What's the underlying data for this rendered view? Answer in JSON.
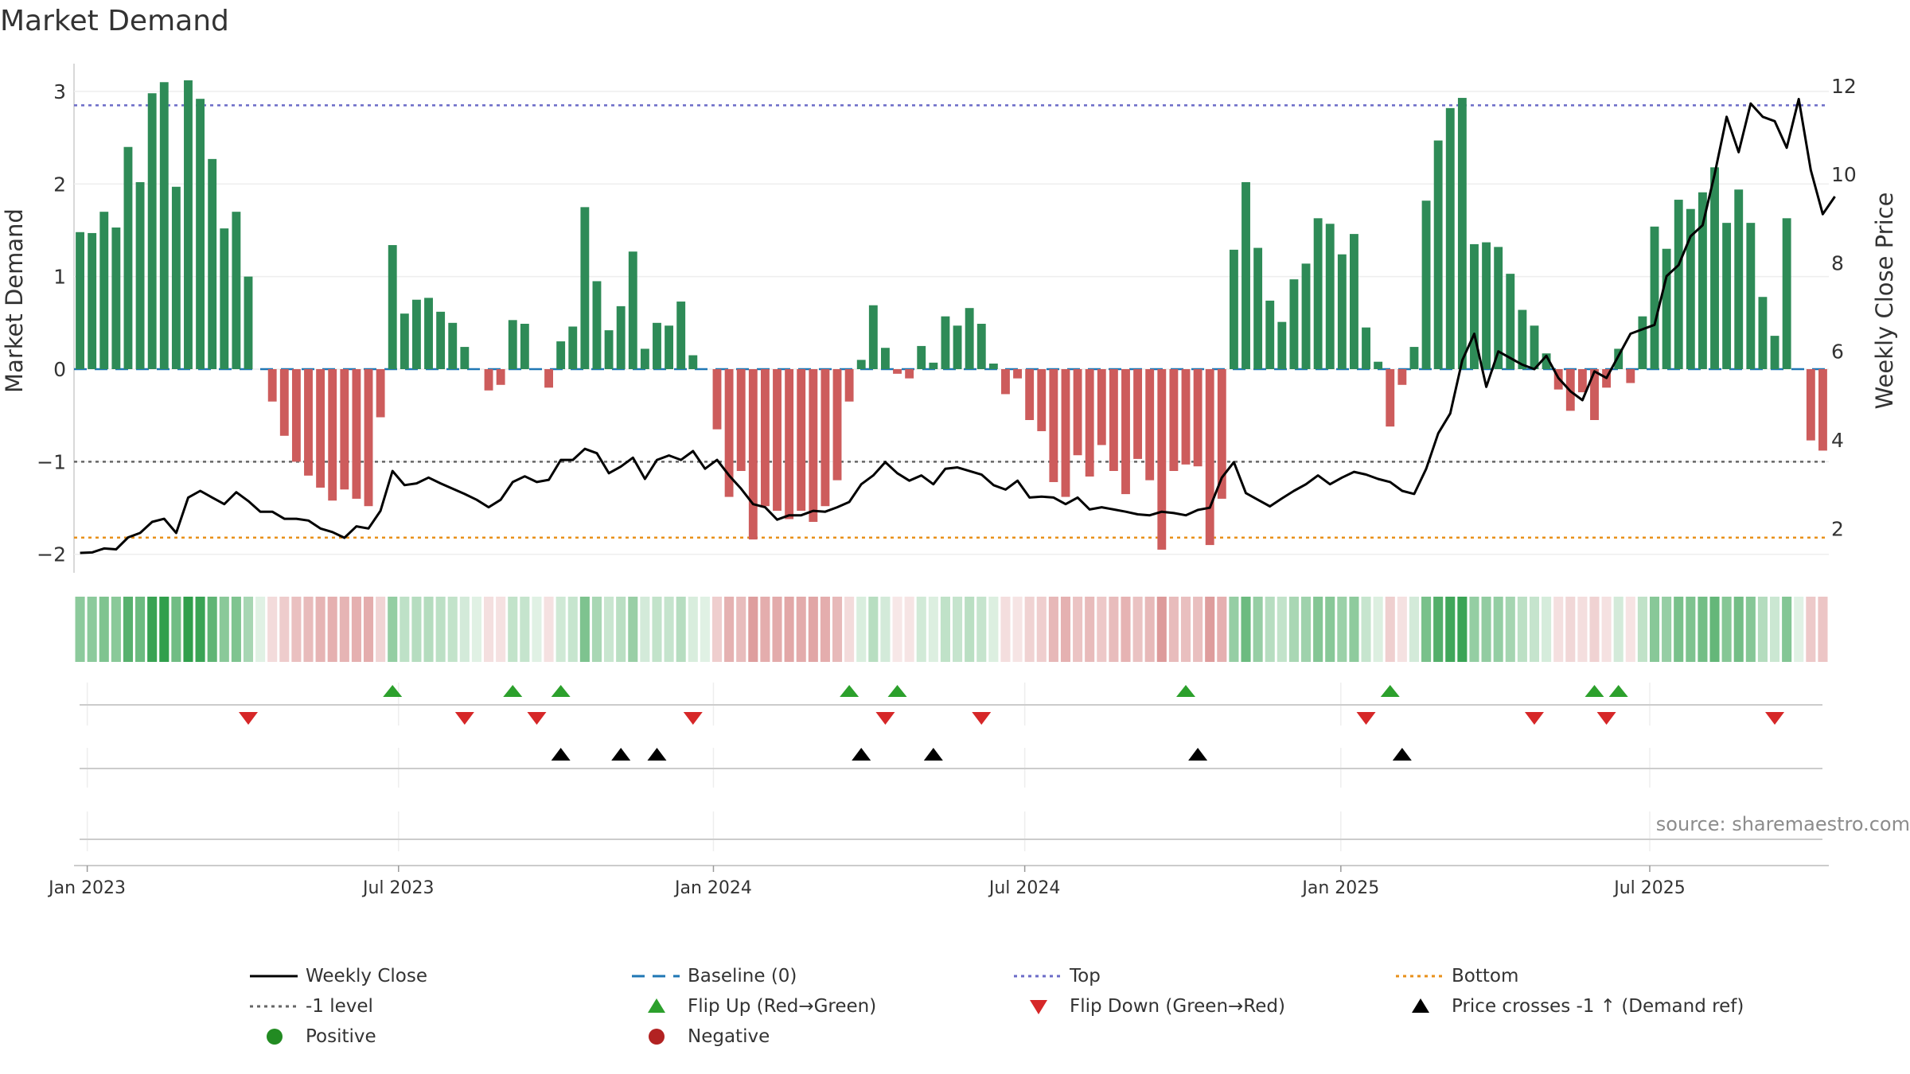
{
  "chart_data": {
    "type": "bar",
    "title": "Market Demand",
    "ylabel_left": "Market Demand",
    "ylabel_right": "Weekly Close Price",
    "ylim_left": [
      -2.2,
      3.3
    ],
    "ylim_right": [
      1.0,
      12.5
    ],
    "yticks_left": [
      -2,
      -1,
      0,
      1,
      2,
      3
    ],
    "yticks_right": [
      2,
      4,
      6,
      8,
      10,
      12
    ],
    "x_ticks": [
      "Jan 2023",
      "Jul 2023",
      "Jan 2024",
      "Jul 2024",
      "Jan 2025",
      "Jul 2025"
    ],
    "x_tick_weeks": [
      1.1,
      27.0,
      53.2,
      79.1,
      105.4,
      131.1
    ],
    "levels": {
      "top": 2.85,
      "bottom": -1.82,
      "minus_one": -1.0,
      "baseline": 0
    },
    "demand": [
      1.48,
      1.47,
      1.7,
      1.53,
      2.4,
      2.02,
      2.98,
      3.1,
      1.97,
      3.12,
      2.92,
      2.27,
      1.52,
      1.7,
      1.0,
      0.0,
      -0.35,
      -0.72,
      -1.0,
      -1.15,
      -1.28,
      -1.42,
      -1.3,
      -1.4,
      -1.48,
      -0.52,
      1.34,
      0.6,
      0.75,
      0.77,
      0.62,
      0.5,
      0.24,
      0.0,
      -0.23,
      -0.17,
      0.53,
      0.49,
      0.0,
      -0.2,
      0.3,
      0.46,
      1.75,
      0.95,
      0.42,
      0.68,
      1.27,
      0.22,
      0.5,
      0.47,
      0.73,
      0.15,
      0.0,
      -0.65,
      -1.38,
      -1.1,
      -1.84,
      -1.48,
      -1.53,
      -1.62,
      -1.53,
      -1.65,
      -1.48,
      -1.2,
      -0.35,
      0.1,
      0.69,
      0.23,
      -0.05,
      -0.1,
      0.25,
      0.07,
      0.57,
      0.47,
      0.66,
      0.49,
      0.06,
      -0.27,
      -0.1,
      -0.55,
      -0.67,
      -1.22,
      -1.38,
      -0.93,
      -1.16,
      -0.82,
      -1.1,
      -1.35,
      -0.97,
      -1.2,
      -1.95,
      -1.1,
      -1.03,
      -1.05,
      -1.9,
      -1.4,
      1.29,
      2.02,
      1.31,
      0.74,
      0.51,
      0.97,
      1.14,
      1.63,
      1.57,
      1.24,
      1.46,
      0.45,
      0.08,
      -0.62,
      -0.17,
      0.24,
      1.82,
      2.47,
      2.82,
      2.93,
      1.35,
      1.37,
      1.32,
      1.03,
      0.64,
      0.47,
      0.17,
      -0.22,
      -0.45,
      -0.25,
      -0.55,
      -0.2,
      0.22,
      -0.15,
      0.57,
      1.54,
      1.3,
      1.83,
      1.73,
      1.91,
      2.18,
      1.58,
      1.94,
      1.58,
      0.78,
      0.36,
      1.63,
      0.0,
      -0.77,
      -0.88
    ],
    "weekly_close": [
      1.45,
      1.46,
      1.55,
      1.53,
      1.8,
      1.9,
      2.15,
      2.22,
      1.9,
      2.7,
      2.85,
      2.7,
      2.55,
      2.82,
      2.62,
      2.38,
      2.38,
      2.22,
      2.22,
      2.18,
      2.0,
      1.92,
      1.79,
      2.05,
      2.0,
      2.4,
      3.3,
      2.98,
      3.02,
      3.15,
      3.02,
      2.9,
      2.78,
      2.65,
      2.48,
      2.65,
      3.05,
      3.18,
      3.05,
      3.1,
      3.55,
      3.55,
      3.8,
      3.7,
      3.25,
      3.4,
      3.6,
      3.12,
      3.55,
      3.65,
      3.55,
      3.75,
      3.35,
      3.55,
      3.2,
      2.9,
      2.55,
      2.48,
      2.2,
      2.3,
      2.3,
      2.4,
      2.38,
      2.48,
      2.6,
      3.0,
      3.2,
      3.5,
      3.25,
      3.08,
      3.2,
      3.0,
      3.35,
      3.38,
      3.3,
      3.22,
      2.98,
      2.88,
      3.08,
      2.7,
      2.72,
      2.7,
      2.55,
      2.7,
      2.43,
      2.48,
      2.43,
      2.38,
      2.32,
      2.3,
      2.38,
      2.35,
      2.3,
      2.42,
      2.47,
      3.15,
      3.5,
      2.8,
      2.65,
      2.5,
      2.68,
      2.85,
      3.0,
      3.2,
      3.0,
      3.15,
      3.28,
      3.22,
      3.12,
      3.05,
      2.85,
      2.78,
      3.35,
      4.15,
      4.6,
      5.8,
      6.4,
      5.2,
      6.0,
      5.85,
      5.7,
      5.6,
      5.9,
      5.4,
      5.1,
      4.9,
      5.55,
      5.4,
      5.9,
      6.4,
      6.5,
      6.6,
      7.7,
      7.95,
      8.6,
      8.85,
      10.0,
      11.3,
      10.5,
      11.6,
      11.3,
      11.2,
      10.6,
      11.7,
      10.1,
      9.1,
      9.5
    ],
    "flips_up_weeks": [
      26,
      36,
      40,
      64,
      68,
      92,
      109,
      126,
      128
    ],
    "flips_down_weeks": [
      14,
      32,
      38,
      51,
      67,
      75,
      107,
      121,
      127,
      141
    ],
    "price_cross_weeks": [
      40,
      45,
      48,
      65,
      71,
      93,
      110
    ],
    "legend": [
      {
        "key": "weekly_close",
        "label": "Weekly Close",
        "color": "#000000"
      },
      {
        "key": "baseline",
        "label": "Baseline (0)",
        "color": "#1f77b4"
      },
      {
        "key": "top",
        "label": "Top",
        "color": "#6b6bc7"
      },
      {
        "key": "bottom",
        "label": "Bottom",
        "color": "#e8901a"
      },
      {
        "key": "minus_one",
        "label": "-1 level",
        "color": "#666666"
      },
      {
        "key": "flip_up",
        "label": "Flip Up (Red→Green)",
        "color": "#2ca02c"
      },
      {
        "key": "flip_down",
        "label": "Flip Down (Green→Red)",
        "color": "#d62728"
      },
      {
        "key": "price_cross",
        "label": "Price crosses -1 ↑ (Demand ref)",
        "color": "#000000"
      },
      {
        "key": "positive",
        "label": "Positive",
        "color": "#228b22"
      },
      {
        "key": "negative",
        "label": "Negative",
        "color": "#b22222"
      }
    ],
    "colors": {
      "positive_bar": "#2e8b57",
      "negative_bar": "#cd5c5c",
      "heat_pos": "#2e9e4a",
      "heat_neg": "#cd6a6a"
    }
  },
  "source": "source: sharemaestro.com"
}
